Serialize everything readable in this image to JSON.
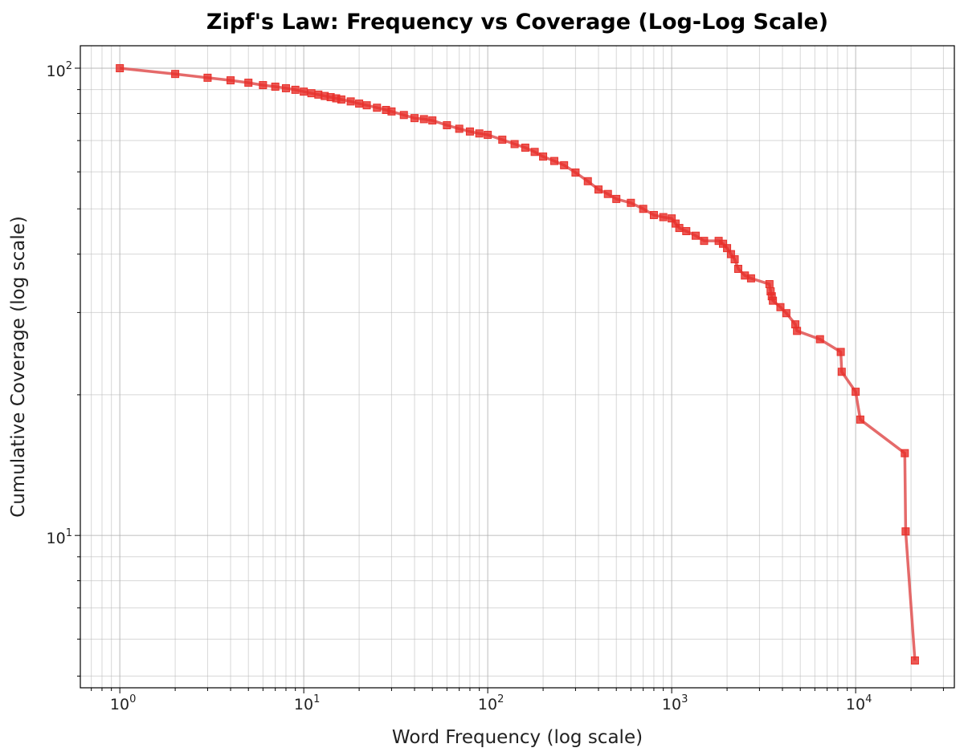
{
  "chart_data": {
    "type": "line",
    "title": "Zipf's Law: Frequency vs Coverage (Log-Log Scale)",
    "xlabel": "Word Frequency (log scale)",
    "ylabel": "Cumulative Coverage (log scale)",
    "xscale": "log",
    "yscale": "log",
    "xlim": [
      0.61,
      34400
    ],
    "ylim": [
      4.72,
      111.7
    ],
    "grid": true,
    "marker": "square",
    "x_ticks": [
      {
        "value": 1,
        "base": "10",
        "exp": "0"
      },
      {
        "value": 10,
        "base": "10",
        "exp": "1"
      },
      {
        "value": 100,
        "base": "10",
        "exp": "2"
      },
      {
        "value": 1000,
        "base": "10",
        "exp": "3"
      },
      {
        "value": 10000,
        "base": "10",
        "exp": "4"
      }
    ],
    "y_ticks": [
      {
        "value": 10,
        "base": "10",
        "exp": "1"
      },
      {
        "value": 100,
        "base": "10",
        "exp": "2"
      }
    ],
    "colors": {
      "line": "#e05050",
      "marker": "#e8302a"
    },
    "series": [
      {
        "x": [
          1,
          2,
          3,
          4,
          5,
          6,
          7,
          8,
          9,
          10,
          11,
          12,
          13,
          14,
          15,
          16,
          18,
          20,
          22,
          25,
          28,
          30,
          35,
          40,
          45,
          50,
          60,
          70,
          80,
          90,
          100,
          120,
          140,
          160,
          180,
          200,
          230,
          260,
          300,
          350,
          400,
          450,
          500,
          600,
          700,
          800,
          900,
          1000,
          1050,
          1100,
          1200,
          1350,
          1500,
          1800,
          1900,
          2000,
          2100,
          2200,
          2300,
          2500,
          2700,
          3400,
          3450,
          3500,
          3550,
          3900,
          4200,
          4700,
          4800,
          6400,
          8300,
          8400,
          10000,
          10600,
          18500,
          18700,
          21000
        ],
        "y": [
          100,
          97.2,
          95.4,
          94.2,
          93.1,
          92,
          91.3,
          90.6,
          89.9,
          89.1,
          88.4,
          87.8,
          87.2,
          86.7,
          86.2,
          85.7,
          84.9,
          84,
          83.3,
          82.3,
          81.4,
          80.8,
          79.4,
          78.2,
          77.8,
          77.3,
          75.5,
          74.2,
          73.2,
          72.5,
          72,
          70.3,
          68.8,
          67.6,
          66.2,
          64.7,
          63.3,
          62,
          59.8,
          57.3,
          55,
          53.8,
          52.5,
          51.5,
          50,
          48.5,
          48,
          47.7,
          46.5,
          45.5,
          44.8,
          43.8,
          42.7,
          42.7,
          42.1,
          41.2,
          40,
          39,
          37.2,
          36,
          35.5,
          34.5,
          33.3,
          32.5,
          31.8,
          30.8,
          29.9,
          28.3,
          27.4,
          26.3,
          24.7,
          22.4,
          20.3,
          17.7,
          15,
          10.2,
          5.4
        ]
      }
    ]
  }
}
